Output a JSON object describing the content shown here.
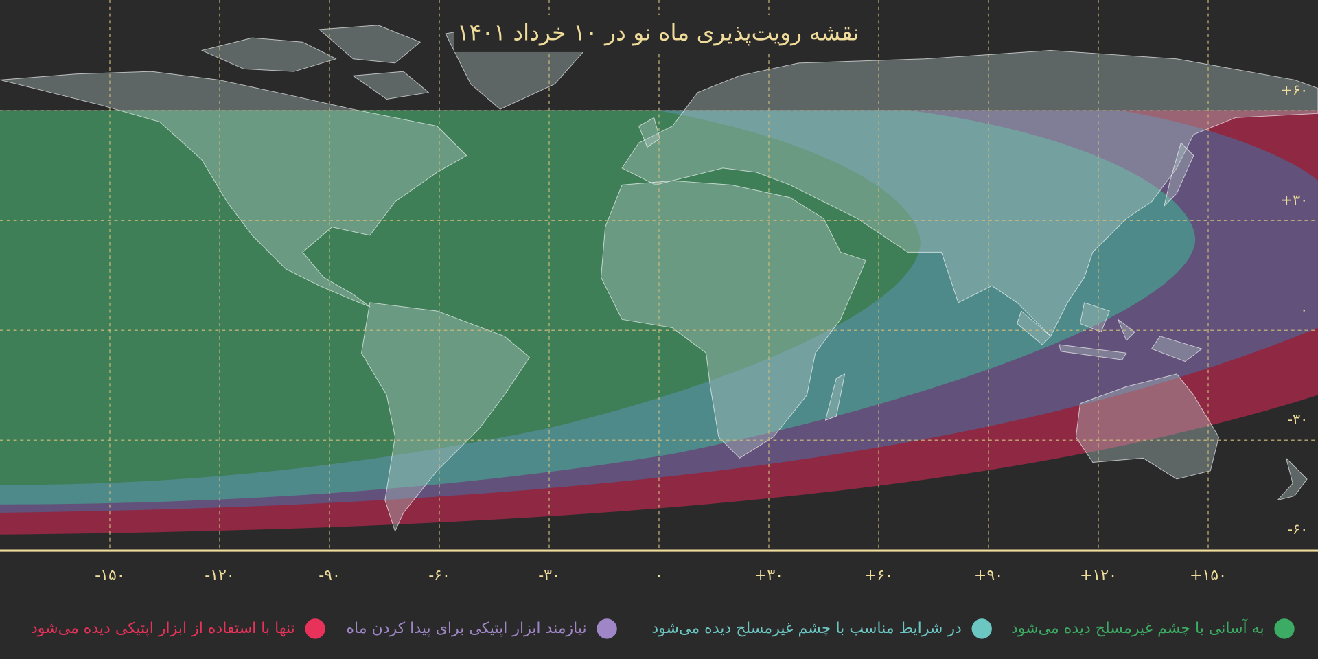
{
  "title": "نقشه رویت‌پذیری ماه نو در ۱۰ خرداد ۱۴۰۱",
  "xlim": [
    -180,
    180
  ],
  "xticks": [
    {
      "value": -150,
      "label": "-۱۵۰"
    },
    {
      "value": -120,
      "label": "-۱۲۰"
    },
    {
      "value": -90,
      "label": "-۹۰"
    },
    {
      "value": -60,
      "label": "-۶۰"
    },
    {
      "value": -30,
      "label": "-۳۰"
    },
    {
      "value": 0,
      "label": "۰"
    },
    {
      "value": 30,
      "label": "+۳۰"
    },
    {
      "value": 60,
      "label": "+۶۰"
    },
    {
      "value": 90,
      "label": "+۹۰"
    },
    {
      "value": 120,
      "label": "+۱۲۰"
    },
    {
      "value": 150,
      "label": "+۱۵۰"
    }
  ],
  "yticks": [
    {
      "value": 60,
      "label": "+۶۰"
    },
    {
      "value": 30,
      "label": "+۳۰"
    },
    {
      "value": 0,
      "label": "۰"
    },
    {
      "value": -30,
      "label": "-۳۰"
    },
    {
      "value": -60,
      "label": "-۶۰"
    }
  ],
  "legend": [
    {
      "label": "به آسانی با چشم غیرمسلح دیده می‌شود",
      "color": "#3cab63"
    },
    {
      "label": "در شرایط مناسب با چشم غیرمسلح دیده می‌شود",
      "color": "#6cc6c2"
    },
    {
      "label": "نیازمند ابزار اپتیکی برای پیدا کردن ماه",
      "color": "#9f86c6"
    },
    {
      "label": "تنها با استفاده از ابزار اپتیکی دیده می‌شود",
      "color": "#e8325a"
    }
  ]
}
